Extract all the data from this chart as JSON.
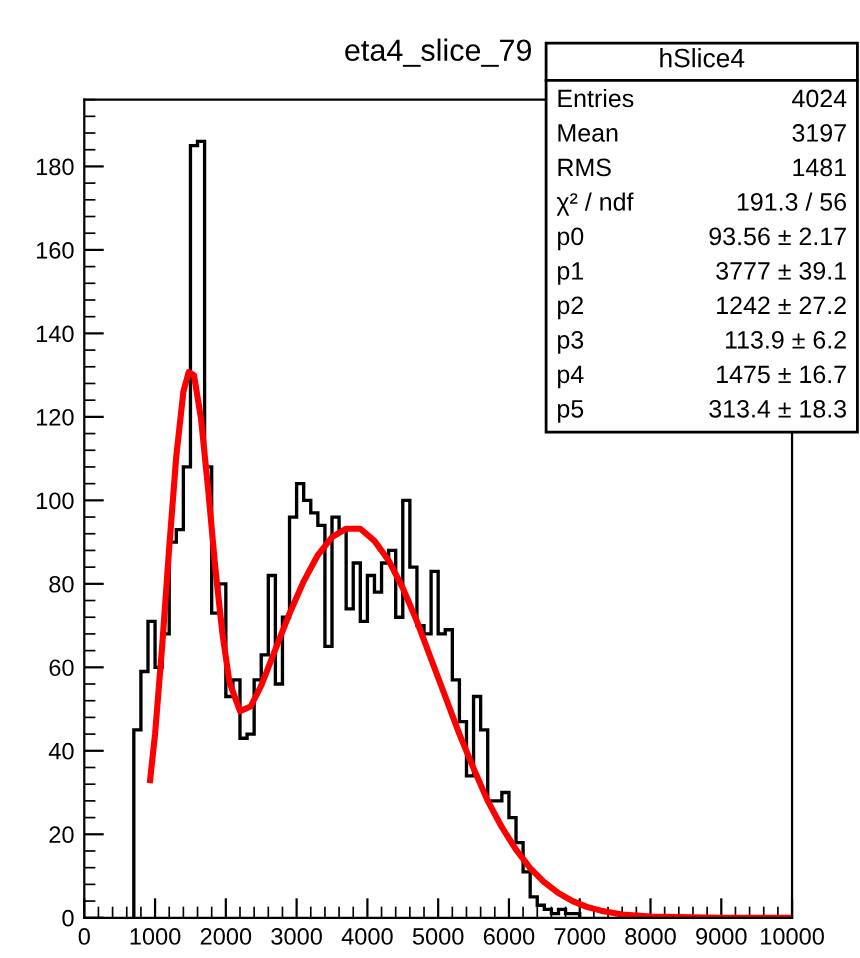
{
  "chart_data": {
    "type": "histogram",
    "title": "eta4_slice_79",
    "series": [
      {
        "color": "#000000",
        "bins": [
          700,
          800,
          900,
          1000,
          1100,
          1200,
          1300,
          1400,
          1500,
          1600,
          1700,
          1800,
          1900,
          2000,
          2100,
          2200,
          2300,
          2400,
          2500,
          2600,
          2700,
          2800,
          2900,
          3000,
          3100,
          3200,
          3300,
          3400,
          3500,
          3600,
          3700,
          3800,
          3900,
          4000,
          4100,
          4200,
          4300,
          4400,
          4500,
          4600,
          4700,
          4800,
          4900,
          5000,
          5100,
          5200,
          5300,
          5400,
          5500,
          5600,
          5700,
          5800,
          5900,
          6000,
          6100,
          6200,
          6300,
          6400,
          6500,
          6600,
          6700,
          6800,
          6900,
          7000
        ],
        "values": [
          45,
          59,
          71,
          60,
          68,
          90,
          93,
          108,
          185,
          186,
          108,
          73,
          80,
          53,
          57,
          43,
          44,
          57,
          63,
          82,
          56,
          72,
          96,
          104,
          100,
          97,
          94,
          65,
          96,
          93,
          74,
          85,
          71,
          82,
          78,
          85,
          88,
          72,
          100,
          84,
          70,
          68,
          83,
          68,
          69,
          57,
          47,
          34,
          53,
          45,
          28,
          28,
          30,
          24,
          18,
          11,
          5,
          3,
          2,
          1,
          2,
          1,
          1
        ]
      },
      {
        "type": "line",
        "color": "#ff0000",
        "x": [
          930,
          1000,
          1100,
          1200,
          1300,
          1400,
          1475,
          1550,
          1650,
          1750,
          1850,
          1950,
          2050,
          2200,
          2350,
          2500,
          2700,
          2900,
          3100,
          3300,
          3500,
          3700,
          3900,
          4100,
          4300,
          4500,
          4700,
          4900,
          5100,
          5300,
          5500,
          5700,
          5900,
          6100,
          6300,
          6500,
          6700,
          6900,
          7100,
          7300,
          7600,
          8000,
          9000,
          10000
        ],
        "values": [
          33,
          44,
          65,
          88.7,
          110.6,
          126,
          130.7,
          130,
          119.5,
          102.7,
          84,
          68.3,
          56.5,
          49.5,
          50.6,
          55.6,
          64.3,
          72.9,
          80.6,
          86.9,
          91.2,
          93.2,
          93.2,
          90.3,
          85.6,
          79,
          71,
          62,
          53,
          44,
          35.8,
          28,
          21.7,
          16.3,
          11.9,
          8.5,
          5.9,
          4,
          2.6,
          1.7,
          0.8,
          0.3,
          0,
          0
        ]
      }
    ],
    "xlim": [
      0,
      10000
    ],
    "xticks": [
      0,
      1000,
      2000,
      3000,
      4000,
      5000,
      6000,
      7000,
      8000,
      9000,
      10000
    ],
    "ylim": [
      0,
      196
    ],
    "yticks": [
      0,
      20,
      40,
      60,
      80,
      100,
      120,
      140,
      160,
      180
    ],
    "grid": false,
    "legend": false,
    "annotations": [
      "hSlice4",
      "Entries",
      "4024",
      "Mean",
      "3197",
      "RMS",
      "1481",
      "χ² / ndf",
      "191.3 / 56",
      "p0",
      "93.56 ± 2.17",
      "p1",
      "3777 ± 39.1",
      "p2",
      "1242 ± 27.2",
      "p3",
      "113.9 ± 6.2",
      "p4",
      "1475 ± 16.7",
      "p5",
      "313.4 ± 18.3"
    ]
  }
}
